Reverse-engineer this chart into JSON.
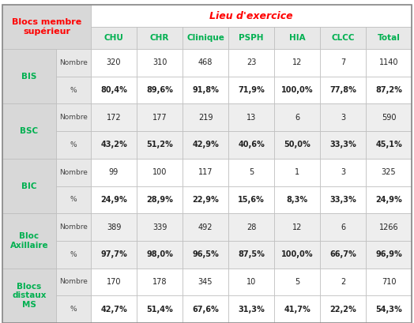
{
  "title_header": "Lieu d'exercice",
  "col1_header": "Blocs membre\nsupérieur",
  "columns": [
    "CHU",
    "CHR",
    "Clinique",
    "PSPH",
    "HIA",
    "CLCC",
    "Total"
  ],
  "rows": [
    {
      "label": "BIS",
      "nombre": [
        "320",
        "310",
        "468",
        "23",
        "12",
        "7",
        "1140"
      ],
      "pct": [
        "80,4%",
        "89,6%",
        "91,8%",
        "71,9%",
        "100,0%",
        "77,8%",
        "87,2%"
      ]
    },
    {
      "label": "BSC",
      "nombre": [
        "172",
        "177",
        "219",
        "13",
        "6",
        "3",
        "590"
      ],
      "pct": [
        "43,2%",
        "51,2%",
        "42,9%",
        "40,6%",
        "50,0%",
        "33,3%",
        "45,1%"
      ]
    },
    {
      "label": "BIC",
      "nombre": [
        "99",
        "100",
        "117",
        "5",
        "1",
        "3",
        "325"
      ],
      "pct": [
        "24,9%",
        "28,9%",
        "22,9%",
        "15,6%",
        "8,3%",
        "33,3%",
        "24,9%"
      ]
    },
    {
      "label": "Bloc\nAxillaire",
      "nombre": [
        "389",
        "339",
        "492",
        "28",
        "12",
        "6",
        "1266"
      ],
      "pct": [
        "97,7%",
        "98,0%",
        "96,5%",
        "87,5%",
        "100,0%",
        "66,7%",
        "96,9%"
      ]
    },
    {
      "label": "Blocs\ndistaux\nMS",
      "nombre": [
        "170",
        "178",
        "345",
        "10",
        "5",
        "2",
        "710"
      ],
      "pct": [
        "42,7%",
        "51,4%",
        "67,6%",
        "31,3%",
        "41,7%",
        "22,2%",
        "54,3%"
      ]
    }
  ],
  "green_color": "#00b050",
  "red_color": "#ff0000",
  "border_color": "#bbbbbb",
  "header_bg": "#ffffff",
  "label_bg": "#d8d8d8",
  "sub_bg_light": "#e8e8e8",
  "data_bg_white": "#ffffff",
  "data_bg_gray": "#eeeeee"
}
